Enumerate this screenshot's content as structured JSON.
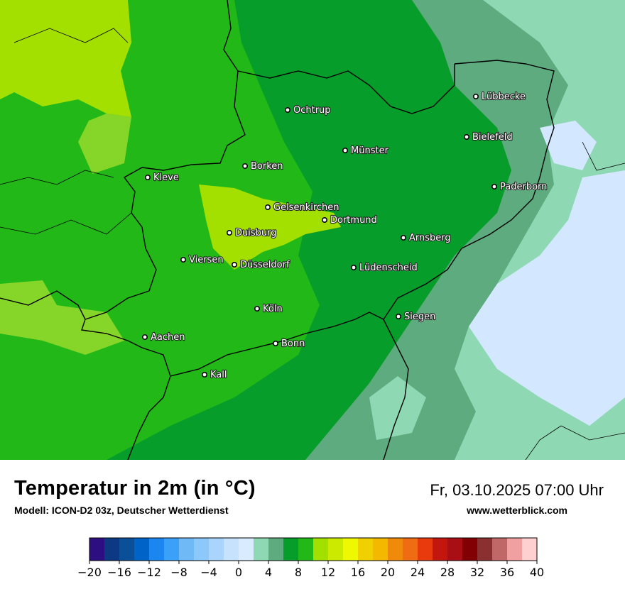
{
  "map": {
    "cities": [
      {
        "name": "Lübbecke"
      },
      {
        "name": "Ochtrup"
      },
      {
        "name": "Bielefeld"
      },
      {
        "name": "Münster"
      },
      {
        "name": "Borken"
      },
      {
        "name": "Kleve"
      },
      {
        "name": "Paderborn"
      },
      {
        "name": "Gelsenkirchen"
      },
      {
        "name": "Dortmund"
      },
      {
        "name": "Duisburg"
      },
      {
        "name": "Arnsberg"
      },
      {
        "name": "Viersen"
      },
      {
        "name": "Düsseldorf"
      },
      {
        "name": "Lüdenscheid"
      },
      {
        "name": "Köln"
      },
      {
        "name": "Siegen"
      },
      {
        "name": "Aachen"
      },
      {
        "name": "Bonn"
      },
      {
        "name": "Kall"
      }
    ],
    "colors": {
      "yellowgreen": "#a3e000",
      "lightgreen": "#86d62a",
      "green": "#22b818",
      "darkgreen": "#079d2a",
      "teal": "#5dab7e",
      "mint": "#8ed8b4",
      "paleblue": "#d3e8ff",
      "border": "#000000"
    }
  },
  "footer": {
    "title": "Temperatur in 2m (in °C)",
    "subtitle": "Modell: ICON-D2 03z, Deutscher Wetterdienst",
    "datetime": "Fr, 03.10.2025 07:00 Uhr",
    "website": "www.wetterblick.com"
  },
  "colorbar": {
    "min": -20,
    "max": 40,
    "step": 4,
    "colors": [
      "#2e0f82",
      "#0b3a82",
      "#0a4f97",
      "#0063c8",
      "#1c86f0",
      "#3aa0f8",
      "#70b9f7",
      "#8cc8fa",
      "#a9d4fb",
      "#c6e2fc",
      "#d9ebff",
      "#8ed8b4",
      "#5dab7e",
      "#079d2a",
      "#22b818",
      "#a3e000",
      "#cbea00",
      "#eef800",
      "#f0d000",
      "#f4b800",
      "#f08a0a",
      "#f06c12",
      "#e83a0c",
      "#c3160e",
      "#a80e14",
      "#820004",
      "#8a3030",
      "#c06868",
      "#f0a0a0",
      "#ffd0d0"
    ],
    "tick_labels": [
      "−20",
      "−16",
      "−12",
      "−8",
      "−4",
      "0",
      "4",
      "8",
      "12",
      "16",
      "20",
      "24",
      "28",
      "32",
      "36",
      "40"
    ]
  }
}
